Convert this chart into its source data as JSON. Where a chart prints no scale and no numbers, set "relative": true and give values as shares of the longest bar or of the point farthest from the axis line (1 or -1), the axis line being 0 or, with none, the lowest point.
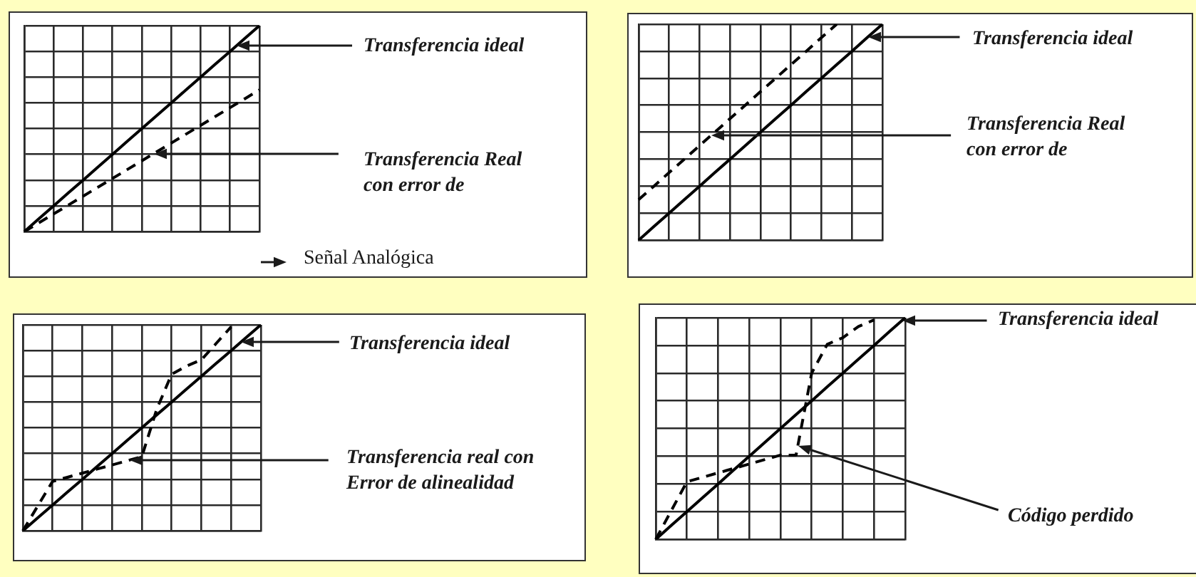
{
  "chart_data": [
    {
      "type": "line",
      "relative": true,
      "grid": true,
      "marker": "none",
      "xlabel": "Señal Analógica",
      "categories": [
        null,
        null,
        null,
        null,
        null,
        null,
        null,
        null,
        null,
        null,
        null,
        null,
        null,
        null,
        null,
        null,
        null
      ],
      "series": [
        {
          "name": "Transferencia ideal",
          "color": "#000000",
          "values": [
            0,
            0.063,
            0.125,
            0.188,
            0.25,
            0.313,
            0.375,
            0.438,
            0.5,
            0.563,
            0.625,
            0.688,
            0.75,
            0.813,
            0.875,
            0.938,
            1
          ]
        },
        {
          "name": "Transferencia Real con error de",
          "color": "#000000",
          "line_style": "dashed",
          "values": [
            0,
            0.043,
            0.086,
            0.129,
            0.172,
            0.215,
            0.258,
            0.301,
            0.344,
            0.387,
            0.43,
            0.473,
            0.516,
            0.559,
            0.602,
            0.645,
            0.688
          ]
        }
      ]
    },
    {
      "type": "line",
      "relative": true,
      "grid": true,
      "marker": "none",
      "categories": [
        null,
        null,
        null,
        null,
        null,
        null,
        null,
        null,
        null,
        null,
        null,
        null,
        null,
        null,
        null,
        null,
        null
      ],
      "series": [
        {
          "name": "Transferencia ideal",
          "color": "#000000",
          "values": [
            0,
            0.063,
            0.125,
            0.188,
            0.25,
            0.313,
            0.375,
            0.438,
            0.5,
            0.563,
            0.625,
            0.688,
            0.75,
            0.813,
            0.875,
            0.938,
            1
          ]
        },
        {
          "name": "Transferencia Real con error de",
          "color": "#000000",
          "line_style": "dashed",
          "values": [
            0.188,
            0.25,
            0.313,
            0.375,
            0.438,
            0.5,
            0.563,
            0.625,
            0.688,
            0.75,
            0.813,
            0.875,
            0.938,
            1,
            null,
            null,
            null
          ]
        }
      ]
    },
    {
      "type": "line",
      "relative": true,
      "grid": true,
      "marker": "none",
      "categories": [
        null,
        null,
        null,
        null,
        null,
        null,
        null,
        null,
        null,
        null,
        null,
        null,
        null,
        null,
        null,
        null,
        null
      ],
      "series": [
        {
          "name": "Transferencia ideal",
          "color": "#000000",
          "values": [
            0,
            0.063,
            0.125,
            0.188,
            0.25,
            0.313,
            0.375,
            0.438,
            0.5,
            0.563,
            0.625,
            0.688,
            0.75,
            0.813,
            0.875,
            0.938,
            1
          ]
        },
        {
          "name": "Transferencia real con Error de alinealidad",
          "color": "#000000",
          "line_style": "dashed",
          "values": [
            0,
            0.12,
            0.24,
            0.26,
            0.28,
            0.3,
            0.32,
            0.34,
            0.36,
            0.59,
            0.76,
            0.8,
            0.83,
            0.91,
            0.99,
            null,
            null
          ]
        }
      ]
    },
    {
      "type": "line",
      "relative": true,
      "grid": true,
      "marker": "none",
      "categories": [
        null,
        null,
        null,
        null,
        null,
        null,
        null,
        null,
        null,
        null,
        null,
        null,
        null,
        null,
        null,
        null,
        null
      ],
      "annotations": [
        "Código perdido"
      ],
      "series": [
        {
          "name": "Transferencia ideal",
          "color": "#000000",
          "values": [
            0,
            0.063,
            0.125,
            0.188,
            0.25,
            0.313,
            0.375,
            0.438,
            0.5,
            0.563,
            0.625,
            0.688,
            0.75,
            0.813,
            0.875,
            0.938,
            1
          ]
        },
        {
          "color": "#000000",
          "line_style": "dashed",
          "values": [
            0,
            0.13,
            0.26,
            0.28,
            0.3,
            0.32,
            0.34,
            0.36,
            0.38,
            0.38,
            0.75,
            0.88,
            0.91,
            0.96,
            0.99,
            null,
            null
          ]
        }
      ]
    }
  ]
}
